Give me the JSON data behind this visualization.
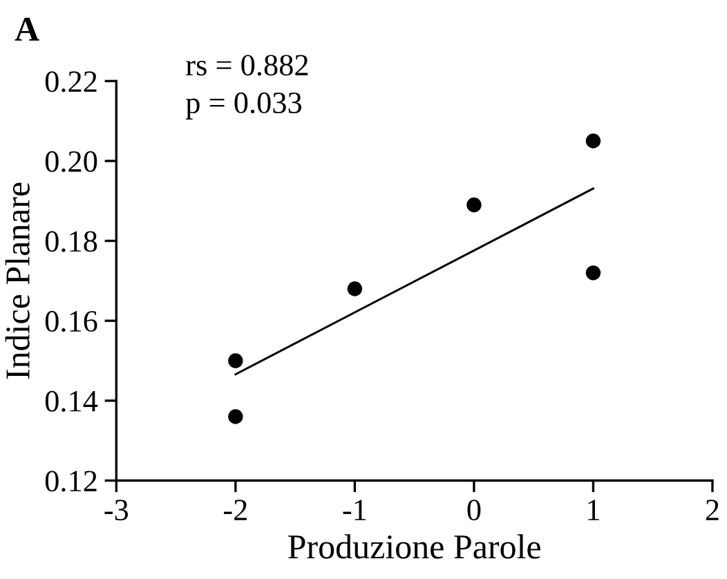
{
  "chart_data": {
    "type": "scatter",
    "title": "A",
    "xlabel": "Produzione Parole",
    "ylabel": "Indice Planare",
    "annotations": [
      "rs = 0.882",
      "p = 0.033"
    ],
    "series": [
      {
        "color": "#000000",
        "marker": "circle",
        "x": [
          -2,
          -2,
          -1,
          0,
          1,
          1
        ],
        "values": [
          0.15,
          0.136,
          0.168,
          0.189,
          0.205,
          0.172
        ]
      },
      {
        "type": "line",
        "color": "#000000",
        "marker": "none",
        "x": [
          -2,
          1
        ],
        "values": [
          0.1466,
          0.1931
        ]
      }
    ],
    "xlim": [
      -3,
      2
    ],
    "xticks": [
      -3,
      -2,
      -1,
      0,
      1,
      2
    ],
    "ylim": [
      0.12,
      0.22
    ],
    "yticks": [
      0.12,
      0.14,
      0.16,
      0.18,
      {
        "value": 0.2,
        "label": "0.20"
      },
      0.22
    ],
    "grid": false
  }
}
